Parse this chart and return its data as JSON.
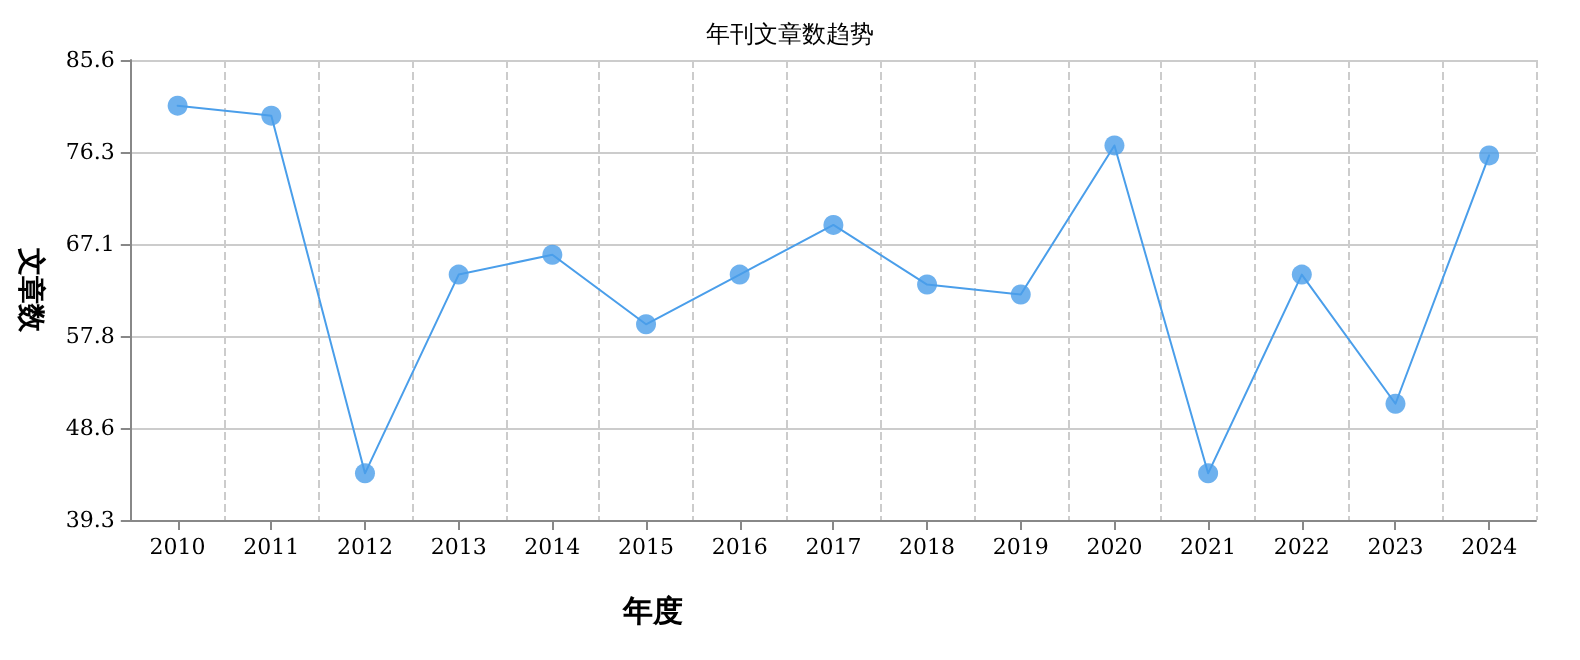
{
  "chart_data": {
    "type": "line",
    "title": "年刊文章数趋势",
    "xlabel": "年度",
    "ylabel": "文章数",
    "categories": [
      "2010",
      "2011",
      "2012",
      "2013",
      "2014",
      "2015",
      "2016",
      "2017",
      "2018",
      "2019",
      "2020",
      "2021",
      "2022",
      "2023",
      "2024"
    ],
    "series": [
      {
        "color": "#4a9eea",
        "values": [
          81,
          80,
          44,
          64,
          66,
          59,
          64,
          69,
          63,
          62,
          77,
          44,
          64,
          51,
          76
        ]
      }
    ],
    "ylim": [
      39.3,
      85.6
    ],
    "yticks": [
      39.3,
      48.6,
      57.8,
      67.1,
      76.3,
      85.6
    ],
    "grid": true,
    "marker": "circle"
  }
}
